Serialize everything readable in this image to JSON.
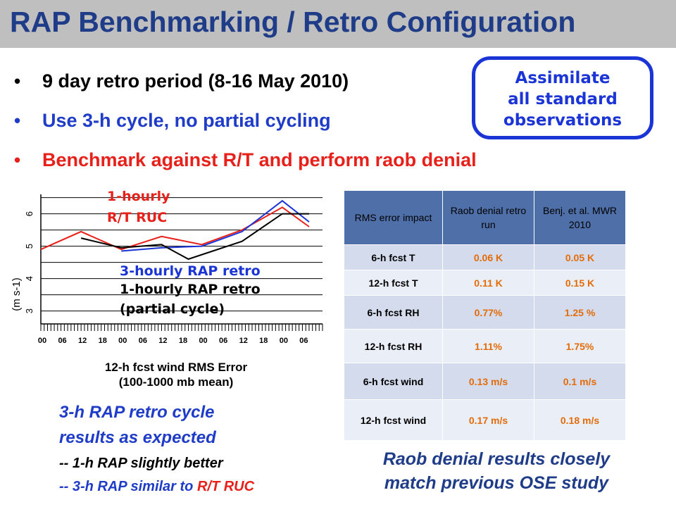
{
  "slide": {
    "title": "RAP Benchmarking / Retro Configuration",
    "bullets": [
      {
        "text": "9 day retro period (8-16 May 2010)",
        "color": "#000000"
      },
      {
        "text": "Use 3-h cycle, no partial cycling",
        "color": "#1f3cc8"
      },
      {
        "text": "Benchmark against R/T and perform raob denial",
        "color": "#e8201a"
      }
    ],
    "bullet_glyph": "•",
    "callout": {
      "lines": [
        "Assimilate",
        "all standard",
        "observations"
      ]
    }
  },
  "chart": {
    "legend": {
      "ruc_1": "1-hourly",
      "ruc_2": "R/T RUC",
      "rap3": "3-hourly RAP retro",
      "rap1_1": "1-hourly RAP retro",
      "rap1_2": "(partial cycle)"
    },
    "caption_1": "12-h fcst wind RMS Error",
    "caption_2": "(100-1000 mb mean)"
  },
  "chart_data": {
    "type": "line",
    "xlabel": "",
    "ylabel": "(m s-1)",
    "x_ticks": [
      "00",
      "06",
      "12",
      "18",
      "00",
      "06",
      "12",
      "18",
      "00",
      "06",
      "12",
      "18",
      "00",
      "06"
    ],
    "y_ticks": [
      3,
      4,
      5,
      6
    ],
    "ylim": [
      2.6,
      6.6
    ],
    "series": [
      {
        "name": "R/T RUC",
        "color": "#e8201a",
        "points": [
          [
            0,
            4.9
          ],
          [
            3,
            5.45
          ],
          [
            6,
            4.9
          ],
          [
            9,
            5.3
          ],
          [
            12,
            5.05
          ],
          [
            15,
            5.5
          ],
          [
            18,
            6.2
          ],
          [
            20,
            5.6
          ]
        ]
      },
      {
        "name": "3-hourly RAP retro",
        "color": "#1a34d6",
        "points": [
          [
            6,
            4.85
          ],
          [
            9,
            4.95
          ],
          [
            12,
            5.0
          ],
          [
            15,
            5.45
          ],
          [
            18,
            6.4
          ],
          [
            20,
            5.75
          ]
        ]
      },
      {
        "name": "1-hourly RAP retro (partial cycle)",
        "color": "#000000",
        "points": [
          [
            3,
            5.25
          ],
          [
            6,
            4.95
          ],
          [
            9,
            5.05
          ],
          [
            11,
            4.6
          ],
          [
            15,
            5.15
          ],
          [
            18,
            6.0
          ],
          [
            20,
            6.0
          ]
        ]
      }
    ],
    "grid": true
  },
  "table": {
    "headers": [
      "RMS error impact",
      "Raob denial retro run",
      "Benj. et al. MWR 2010"
    ],
    "rows": [
      {
        "label": "6-h fcst T",
        "retro": "0.06 K",
        "benj": "0.05 K"
      },
      {
        "label": "12-h fcst T",
        "retro": "0.11 K",
        "benj": "0.15 K"
      },
      {
        "label": "6-h fcst RH",
        "retro": "0.77%",
        "benj": "1.25 %"
      },
      {
        "label": "12-h fcst RH",
        "retro": "1.11%",
        "benj": "1.75%"
      },
      {
        "label": "6-h fcst wind",
        "retro": "0.13 m/s",
        "benj": "0.1 m/s"
      },
      {
        "label": "12-h fcst wind",
        "retro": "0.17 m/s",
        "benj": "0.18 m/s"
      }
    ]
  },
  "conclusions": {
    "left_1": "3-h RAP retro cycle",
    "left_2": "results as expected",
    "left_3": "-- 1-h RAP slightly better",
    "left_4_prefix": "-- 3-h RAP similar to ",
    "left_4_highlight": "R/T RUC",
    "right_1": "Raob denial results closely",
    "right_2": "match previous OSE study"
  },
  "colors": {
    "title": "#1f3c88",
    "blue": "#1a34d6",
    "red": "#e8201a",
    "orange": "#e36c09",
    "table_header": "#4f6fa8",
    "title_bar": "#bfbfbf"
  }
}
